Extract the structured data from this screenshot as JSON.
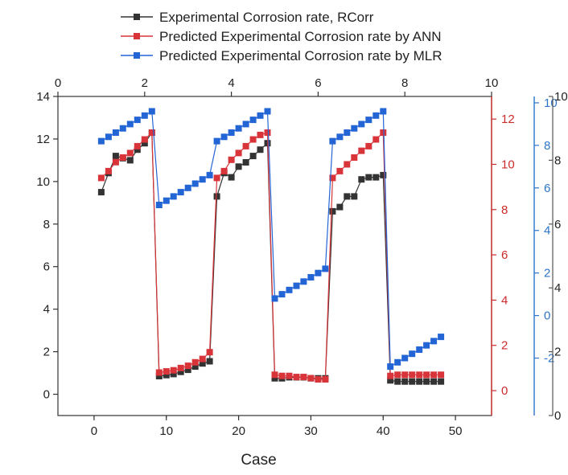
{
  "chart_data": {
    "type": "line",
    "xlabel": "Case",
    "x_bottom": {
      "range": [
        -5,
        55
      ],
      "ticks": [
        0,
        10,
        20,
        30,
        40,
        50
      ]
    },
    "x_top": {
      "range": [
        0,
        10
      ],
      "ticks": [
        0,
        2,
        4,
        6,
        8,
        10
      ]
    },
    "y_left": {
      "range": [
        -1,
        14
      ],
      "ticks": [
        0,
        2,
        4,
        6,
        8,
        10,
        12,
        14
      ],
      "color": "#222222"
    },
    "y_right_red": {
      "range": [
        -1.1,
        13
      ],
      "ticks": [
        0,
        2,
        4,
        6,
        8,
        10,
        12
      ],
      "color": "#cc2b2b"
    },
    "y_right_dark": {
      "range": [
        0,
        10
      ],
      "ticks": [
        0,
        2,
        4,
        6,
        8,
        10
      ],
      "color": "#222222"
    },
    "y_right_blue": {
      "range": [
        -4.7,
        10.3
      ],
      "ticks": [
        -2,
        0,
        2,
        4,
        6,
        8,
        10
      ],
      "color": "#2e75c9"
    },
    "legend_position": "top-center",
    "series": [
      {
        "name": "Experimental Corrosion rate, RCorr",
        "color": "#333333",
        "axis": "y_left",
        "x": [
          1,
          2,
          3,
          4,
          5,
          6,
          7,
          8,
          9,
          10,
          11,
          12,
          13,
          14,
          15,
          16,
          17,
          18,
          19,
          20,
          21,
          22,
          23,
          24,
          25,
          26,
          27,
          28,
          29,
          30,
          31,
          32,
          33,
          34,
          35,
          36,
          37,
          38,
          39,
          40,
          41,
          42,
          43,
          44,
          45,
          46,
          47,
          48
        ],
        "values": [
          9.5,
          10.4,
          11.2,
          11.1,
          11.0,
          11.5,
          11.8,
          12.3,
          0.85,
          0.9,
          0.95,
          1.05,
          1.15,
          1.3,
          1.45,
          1.55,
          9.3,
          10.4,
          10.2,
          10.7,
          10.9,
          11.2,
          11.5,
          11.8,
          0.75,
          0.75,
          0.8,
          0.8,
          0.8,
          0.75,
          0.75,
          0.75,
          8.6,
          8.8,
          9.3,
          9.3,
          10.1,
          10.2,
          10.2,
          10.3,
          0.65,
          0.6,
          0.6,
          0.6,
          0.6,
          0.6,
          0.6,
          0.6
        ]
      },
      {
        "name": "Predicted Experimental Corrosion rate by ANN",
        "color": "#d8343a",
        "axis": "y_right_red",
        "x": [
          1,
          2,
          3,
          4,
          5,
          6,
          7,
          8,
          9,
          10,
          11,
          12,
          13,
          14,
          15,
          16,
          17,
          18,
          19,
          20,
          21,
          22,
          23,
          24,
          25,
          26,
          27,
          28,
          29,
          30,
          31,
          32,
          33,
          34,
          35,
          36,
          37,
          38,
          39,
          40,
          41,
          42,
          43,
          44,
          45,
          46,
          47,
          48
        ],
        "values": [
          9.4,
          9.7,
          10.1,
          10.3,
          10.5,
          10.8,
          11.1,
          11.4,
          0.8,
          0.85,
          0.9,
          1.0,
          1.1,
          1.25,
          1.4,
          1.7,
          9.4,
          9.7,
          10.2,
          10.5,
          10.8,
          11.1,
          11.3,
          11.4,
          0.7,
          0.65,
          0.65,
          0.6,
          0.6,
          0.55,
          0.5,
          0.5,
          9.4,
          9.7,
          10.0,
          10.3,
          10.6,
          10.8,
          11.1,
          11.4,
          0.65,
          0.7,
          0.7,
          0.7,
          0.7,
          0.7,
          0.7,
          0.7
        ]
      },
      {
        "name": "Predicted Experimental Corrosion rate by MLR",
        "color": "#2465d6",
        "axis": "y_right_blue",
        "x": [
          1,
          2,
          3,
          4,
          5,
          6,
          7,
          8,
          9,
          10,
          11,
          12,
          13,
          14,
          15,
          16,
          17,
          18,
          19,
          20,
          21,
          22,
          23,
          24,
          25,
          26,
          27,
          28,
          29,
          30,
          31,
          32,
          33,
          34,
          35,
          36,
          37,
          38,
          39,
          40,
          41,
          42,
          43,
          44,
          45,
          46,
          47,
          48
        ],
        "values": [
          8.2,
          8.4,
          8.6,
          8.8,
          9.0,
          9.2,
          9.4,
          9.6,
          5.2,
          5.4,
          5.6,
          5.8,
          6.0,
          6.2,
          6.4,
          6.6,
          8.2,
          8.4,
          8.6,
          8.8,
          9.0,
          9.2,
          9.4,
          9.6,
          0.8,
          1.0,
          1.2,
          1.4,
          1.6,
          1.8,
          2.0,
          2.2,
          8.2,
          8.4,
          8.6,
          8.8,
          9.0,
          9.2,
          9.4,
          9.6,
          -2.4,
          -2.2,
          -2.0,
          -1.8,
          -1.6,
          -1.4,
          -1.2,
          -1.0
        ]
      }
    ]
  }
}
